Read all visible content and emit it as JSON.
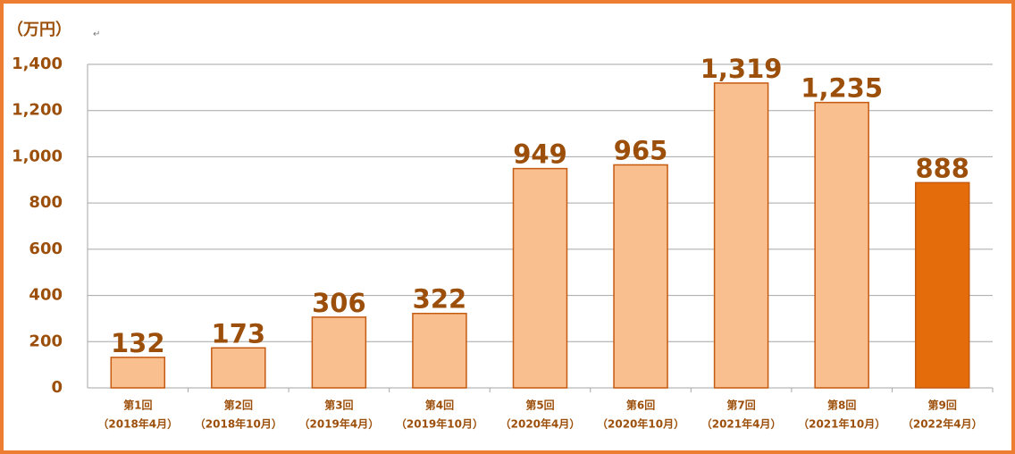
{
  "chart_data": {
    "type": "bar",
    "y_label": "（万円）",
    "annotation": "↵",
    "categories": [
      [
        "第1回",
        "（2018年4月）"
      ],
      [
        "第2回",
        "（2018年10月）"
      ],
      [
        "第3回",
        "（2019年4月）"
      ],
      [
        "第4回",
        "（2019年10月）"
      ],
      [
        "第5回",
        "（2020年4月）"
      ],
      [
        "第6回",
        "（2020年10月）"
      ],
      [
        "第7回",
        "（2021年4月）"
      ],
      [
        "第8回",
        "（2021年10月）"
      ],
      [
        "第9回",
        "（2022年4月）"
      ]
    ],
    "values": [
      132,
      173,
      306,
      322,
      949,
      965,
      1319,
      1235,
      888
    ],
    "value_labels": [
      "132",
      "173",
      "306",
      "322",
      "949",
      "965",
      "1,319",
      "1,235",
      "888"
    ],
    "colors": [
      "#f9bf8f",
      "#f9bf8f",
      "#f9bf8f",
      "#f9bf8f",
      "#f9bf8f",
      "#f9bf8f",
      "#f9bf8f",
      "#f9bf8f",
      "#e46c0a"
    ],
    "ylim": [
      0,
      1400
    ],
    "yticks": [
      0,
      200,
      400,
      600,
      800,
      {
        "value": 1000,
        "label": "1,000"
      },
      {
        "value": 1200,
        "label": "1,200"
      },
      {
        "value": 1400,
        "label": "1,400"
      }
    ],
    "grid": true
  }
}
